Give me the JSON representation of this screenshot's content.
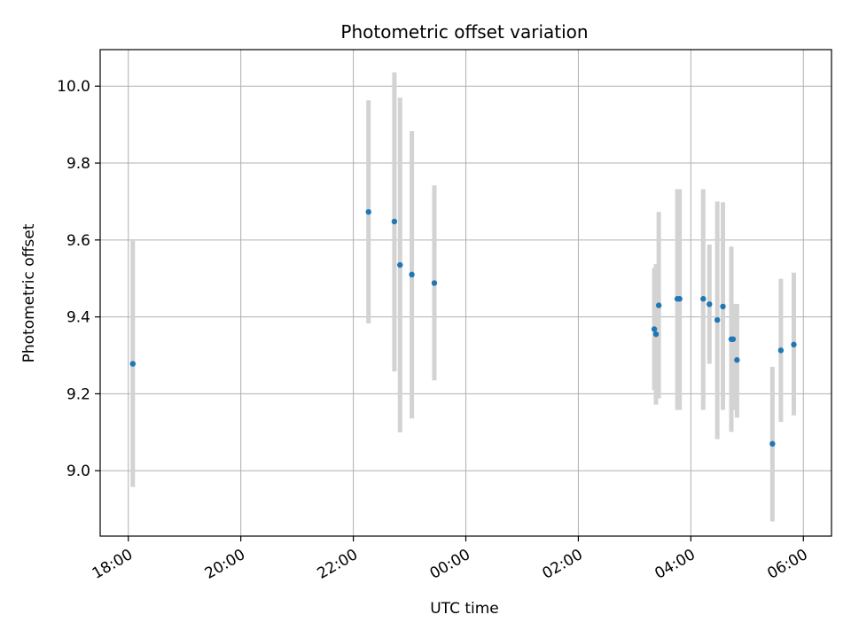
{
  "chart_data": {
    "type": "scatter",
    "title": "Photometric offset variation",
    "xlabel": "UTC time",
    "ylabel": "Photometric offset",
    "x_unit": "hours",
    "xlim": [
      -0.5,
      12.5
    ],
    "ylim": [
      8.83,
      10.095
    ],
    "x_ticks": [
      {
        "value": 0,
        "label": "18:00"
      },
      {
        "value": 2,
        "label": "20:00"
      },
      {
        "value": 4,
        "label": "22:00"
      },
      {
        "value": 6,
        "label": "00:00"
      },
      {
        "value": 8,
        "label": "02:00"
      },
      {
        "value": 10,
        "label": "04:00"
      },
      {
        "value": 12,
        "label": "06:00"
      }
    ],
    "y_ticks": [
      {
        "value": 9.0,
        "label": "9.0"
      },
      {
        "value": 9.2,
        "label": "9.2"
      },
      {
        "value": 9.4,
        "label": "9.4"
      },
      {
        "value": 9.6,
        "label": "9.6"
      },
      {
        "value": 9.8,
        "label": "9.8"
      },
      {
        "value": 10.0,
        "label": "10.0"
      }
    ],
    "grid": true,
    "colors": {
      "point": "#1f77b4",
      "errorbar": "#d3d3d3",
      "grid": "#b0b0b0",
      "axes": "#000000"
    },
    "points": [
      {
        "x": 0.08,
        "y": 9.278,
        "ylo": 8.958,
        "yhi": 9.598
      },
      {
        "x": 4.27,
        "y": 9.673,
        "ylo": 9.383,
        "yhi": 9.963
      },
      {
        "x": 4.73,
        "y": 9.648,
        "ylo": 9.258,
        "yhi": 10.036
      },
      {
        "x": 4.83,
        "y": 9.535,
        "ylo": 9.1,
        "yhi": 9.97
      },
      {
        "x": 5.04,
        "y": 9.51,
        "ylo": 9.136,
        "yhi": 9.883
      },
      {
        "x": 5.44,
        "y": 9.488,
        "ylo": 9.235,
        "yhi": 9.742
      },
      {
        "x": 9.35,
        "y": 9.368,
        "ylo": 9.21,
        "yhi": 9.527
      },
      {
        "x": 9.38,
        "y": 9.355,
        "ylo": 9.172,
        "yhi": 9.537
      },
      {
        "x": 9.43,
        "y": 9.43,
        "ylo": 9.188,
        "yhi": 9.673
      },
      {
        "x": 9.76,
        "y": 9.447,
        "ylo": 9.158,
        "yhi": 9.732
      },
      {
        "x": 9.8,
        "y": 9.447,
        "ylo": 9.158,
        "yhi": 9.732
      },
      {
        "x": 10.22,
        "y": 9.447,
        "ylo": 9.158,
        "yhi": 9.732
      },
      {
        "x": 10.33,
        "y": 9.433,
        "ylo": 9.278,
        "yhi": 9.588
      },
      {
        "x": 10.47,
        "y": 9.392,
        "ylo": 9.082,
        "yhi": 9.7
      },
      {
        "x": 10.57,
        "y": 9.427,
        "ylo": 9.158,
        "yhi": 9.698
      },
      {
        "x": 10.72,
        "y": 9.342,
        "ylo": 9.101,
        "yhi": 9.583
      },
      {
        "x": 10.75,
        "y": 9.342,
        "ylo": 9.158,
        "yhi": 9.434
      },
      {
        "x": 10.82,
        "y": 9.288,
        "ylo": 9.138,
        "yhi": 9.434
      },
      {
        "x": 11.45,
        "y": 9.07,
        "ylo": 8.868,
        "yhi": 9.27
      },
      {
        "x": 11.6,
        "y": 9.313,
        "ylo": 9.127,
        "yhi": 9.499
      },
      {
        "x": 11.83,
        "y": 9.328,
        "ylo": 9.144,
        "yhi": 9.515
      }
    ]
  }
}
